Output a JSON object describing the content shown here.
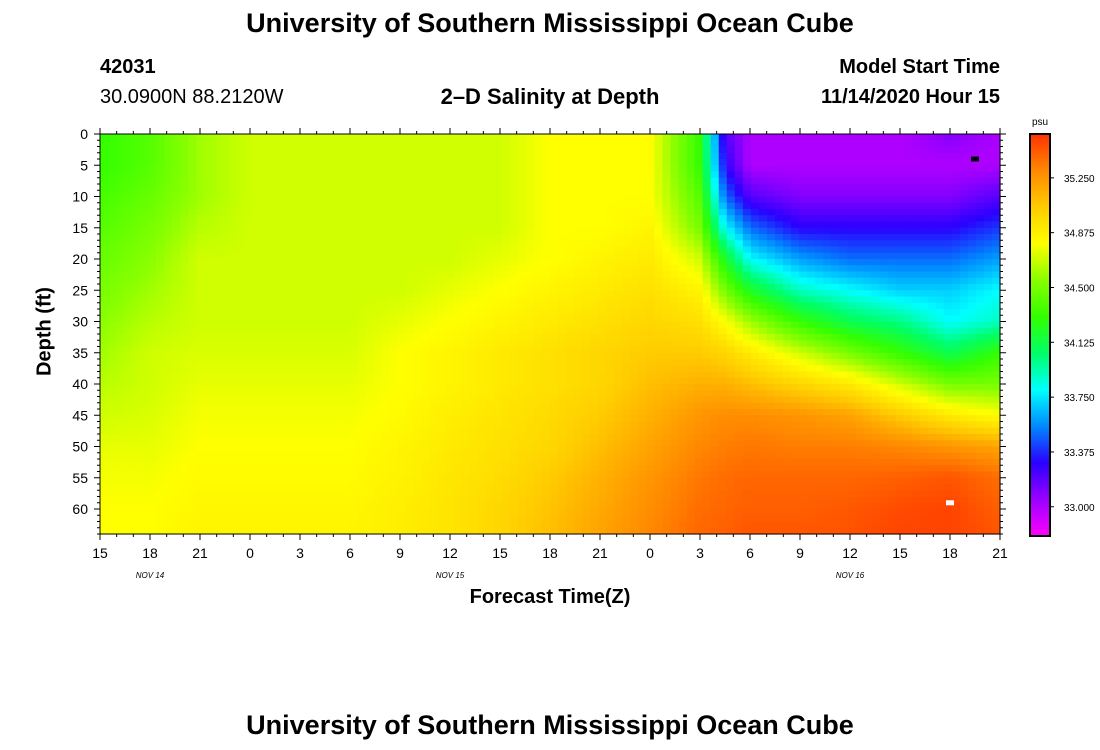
{
  "header": {
    "title": "University of Southern Mississippi Ocean Cube",
    "station_id": "42031",
    "location": "30.0900N 88.2120W",
    "plot_title": "2–D Salinity at Depth",
    "model_start_label": "Model Start Time",
    "model_start_value": "11/14/2020 Hour 15"
  },
  "footer": {
    "title": "University of Southern Mississippi Ocean Cube"
  },
  "chart_data": {
    "type": "heatmap",
    "title": "2–D Salinity at Depth",
    "xlabel": "Forecast Time(Z)",
    "ylabel": "Depth (ft)",
    "x_tick_labels": [
      "15",
      "18",
      "21",
      "0",
      "3",
      "6",
      "9",
      "12",
      "15",
      "18",
      "21",
      "0",
      "3",
      "6",
      "9",
      "12",
      "15",
      "18",
      "21"
    ],
    "x_date_labels": [
      {
        "label": "NOV 14",
        "tick_index": 1
      },
      {
        "label": "NOV 15",
        "tick_index": 7
      },
      {
        "label": "NOV 16",
        "tick_index": 15
      }
    ],
    "x_range_hours": [
      0,
      54
    ],
    "y_tick_labels": [
      "0",
      "5",
      "10",
      "15",
      "20",
      "25",
      "30",
      "35",
      "40",
      "45",
      "50",
      "55",
      "60"
    ],
    "y_range_ft": [
      0,
      64
    ],
    "y_inverted": true,
    "colorbar": {
      "unit": "psu",
      "range": [
        32.8,
        35.55
      ],
      "tick_labels": [
        "35.250",
        "34.875",
        "34.500",
        "34.125",
        "33.750",
        "33.375",
        "33.000"
      ],
      "tick_values": [
        35.25,
        34.875,
        34.5,
        34.125,
        33.75,
        33.375,
        33.0
      ],
      "colors": [
        "#ff00ff",
        "#9a00ff",
        "#2a00ff",
        "#0088ff",
        "#00ffff",
        "#00ff66",
        "#33ff00",
        "#88ff00",
        "#ffff00",
        "#ffcc00",
        "#ff8800",
        "#ff3300"
      ]
    },
    "grid": false,
    "time_hours": [
      0,
      3,
      6,
      9,
      12,
      15,
      18,
      21,
      24,
      27,
      30,
      33,
      36,
      37.5,
      39,
      42,
      45,
      48,
      51,
      54
    ],
    "depth_ft": [
      0,
      5,
      10,
      15,
      20,
      25,
      30,
      35,
      40,
      45,
      50,
      55,
      60,
      64
    ],
    "salinity_psu": [
      [
        34.3,
        34.4,
        34.6,
        34.7,
        34.7,
        34.7,
        34.7,
        34.7,
        34.7,
        34.8,
        34.8,
        34.8,
        34.3,
        33.2,
        33.0,
        33.0,
        33.0,
        33.0,
        33.1,
        33.0
      ],
      [
        34.3,
        34.4,
        34.6,
        34.7,
        34.7,
        34.7,
        34.7,
        34.7,
        34.7,
        34.8,
        34.8,
        34.8,
        34.3,
        33.3,
        33.0,
        33.0,
        33.0,
        33.0,
        33.0,
        33.0
      ],
      [
        34.35,
        34.45,
        34.6,
        34.7,
        34.7,
        34.7,
        34.7,
        34.7,
        34.7,
        34.8,
        34.8,
        34.8,
        34.4,
        33.5,
        33.2,
        33.1,
        33.1,
        33.1,
        33.1,
        33.2
      ],
      [
        34.4,
        34.5,
        34.65,
        34.7,
        34.7,
        34.7,
        34.7,
        34.7,
        34.7,
        34.8,
        34.8,
        34.85,
        34.5,
        33.8,
        33.5,
        33.3,
        33.3,
        33.3,
        33.3,
        33.4
      ],
      [
        34.45,
        34.55,
        34.7,
        34.7,
        34.7,
        34.7,
        34.7,
        34.7,
        34.75,
        34.8,
        34.85,
        34.9,
        34.7,
        34.2,
        33.8,
        33.6,
        33.5,
        33.5,
        33.5,
        33.6
      ],
      [
        34.5,
        34.6,
        34.7,
        34.7,
        34.7,
        34.7,
        34.7,
        34.75,
        34.8,
        34.85,
        34.9,
        34.95,
        34.85,
        34.5,
        34.2,
        33.9,
        33.8,
        33.7,
        33.7,
        33.8
      ],
      [
        34.55,
        34.65,
        34.7,
        34.7,
        34.7,
        34.7,
        34.75,
        34.8,
        34.85,
        34.9,
        34.95,
        35.0,
        34.95,
        34.8,
        34.6,
        34.3,
        34.1,
        34.0,
        33.8,
        33.9
      ],
      [
        34.6,
        34.7,
        34.72,
        34.72,
        34.72,
        34.72,
        34.8,
        34.85,
        34.9,
        34.95,
        35.0,
        35.05,
        35.05,
        35.0,
        34.9,
        34.7,
        34.5,
        34.3,
        34.1,
        34.3
      ],
      [
        34.65,
        34.7,
        34.75,
        34.75,
        34.75,
        34.75,
        34.8,
        34.85,
        34.9,
        34.95,
        35.0,
        35.1,
        35.15,
        35.15,
        35.1,
        35.0,
        34.9,
        34.7,
        34.5,
        34.5
      ],
      [
        34.7,
        34.72,
        34.78,
        34.78,
        34.78,
        34.78,
        34.82,
        34.88,
        34.93,
        34.98,
        35.05,
        35.15,
        35.25,
        35.28,
        35.28,
        35.25,
        35.2,
        35.05,
        34.9,
        34.8
      ],
      [
        34.75,
        34.75,
        34.8,
        34.8,
        34.8,
        34.8,
        34.85,
        34.9,
        34.95,
        35.0,
        35.1,
        35.2,
        35.3,
        35.33,
        35.35,
        35.33,
        35.33,
        35.3,
        35.25,
        35.2
      ],
      [
        34.78,
        34.78,
        34.82,
        34.82,
        34.82,
        34.82,
        34.86,
        34.92,
        34.97,
        35.05,
        35.15,
        35.25,
        35.35,
        35.38,
        35.4,
        35.4,
        35.4,
        35.42,
        35.45,
        35.38
      ],
      [
        34.8,
        34.8,
        34.84,
        34.84,
        34.84,
        34.84,
        34.88,
        34.93,
        35.0,
        35.08,
        35.18,
        35.28,
        35.38,
        35.4,
        35.42,
        35.42,
        35.44,
        35.48,
        35.5,
        35.42
      ],
      [
        34.8,
        34.8,
        34.85,
        34.85,
        34.85,
        34.85,
        34.88,
        34.93,
        35.0,
        35.1,
        35.2,
        35.3,
        35.4,
        35.42,
        35.45,
        35.45,
        35.46,
        35.5,
        35.5,
        35.45
      ]
    ],
    "markers": [
      {
        "time_hour": 52.5,
        "depth_ft": 4,
        "color": "#000000"
      },
      {
        "time_hour": 51,
        "depth_ft": 59,
        "color": "#ffffff"
      }
    ]
  }
}
